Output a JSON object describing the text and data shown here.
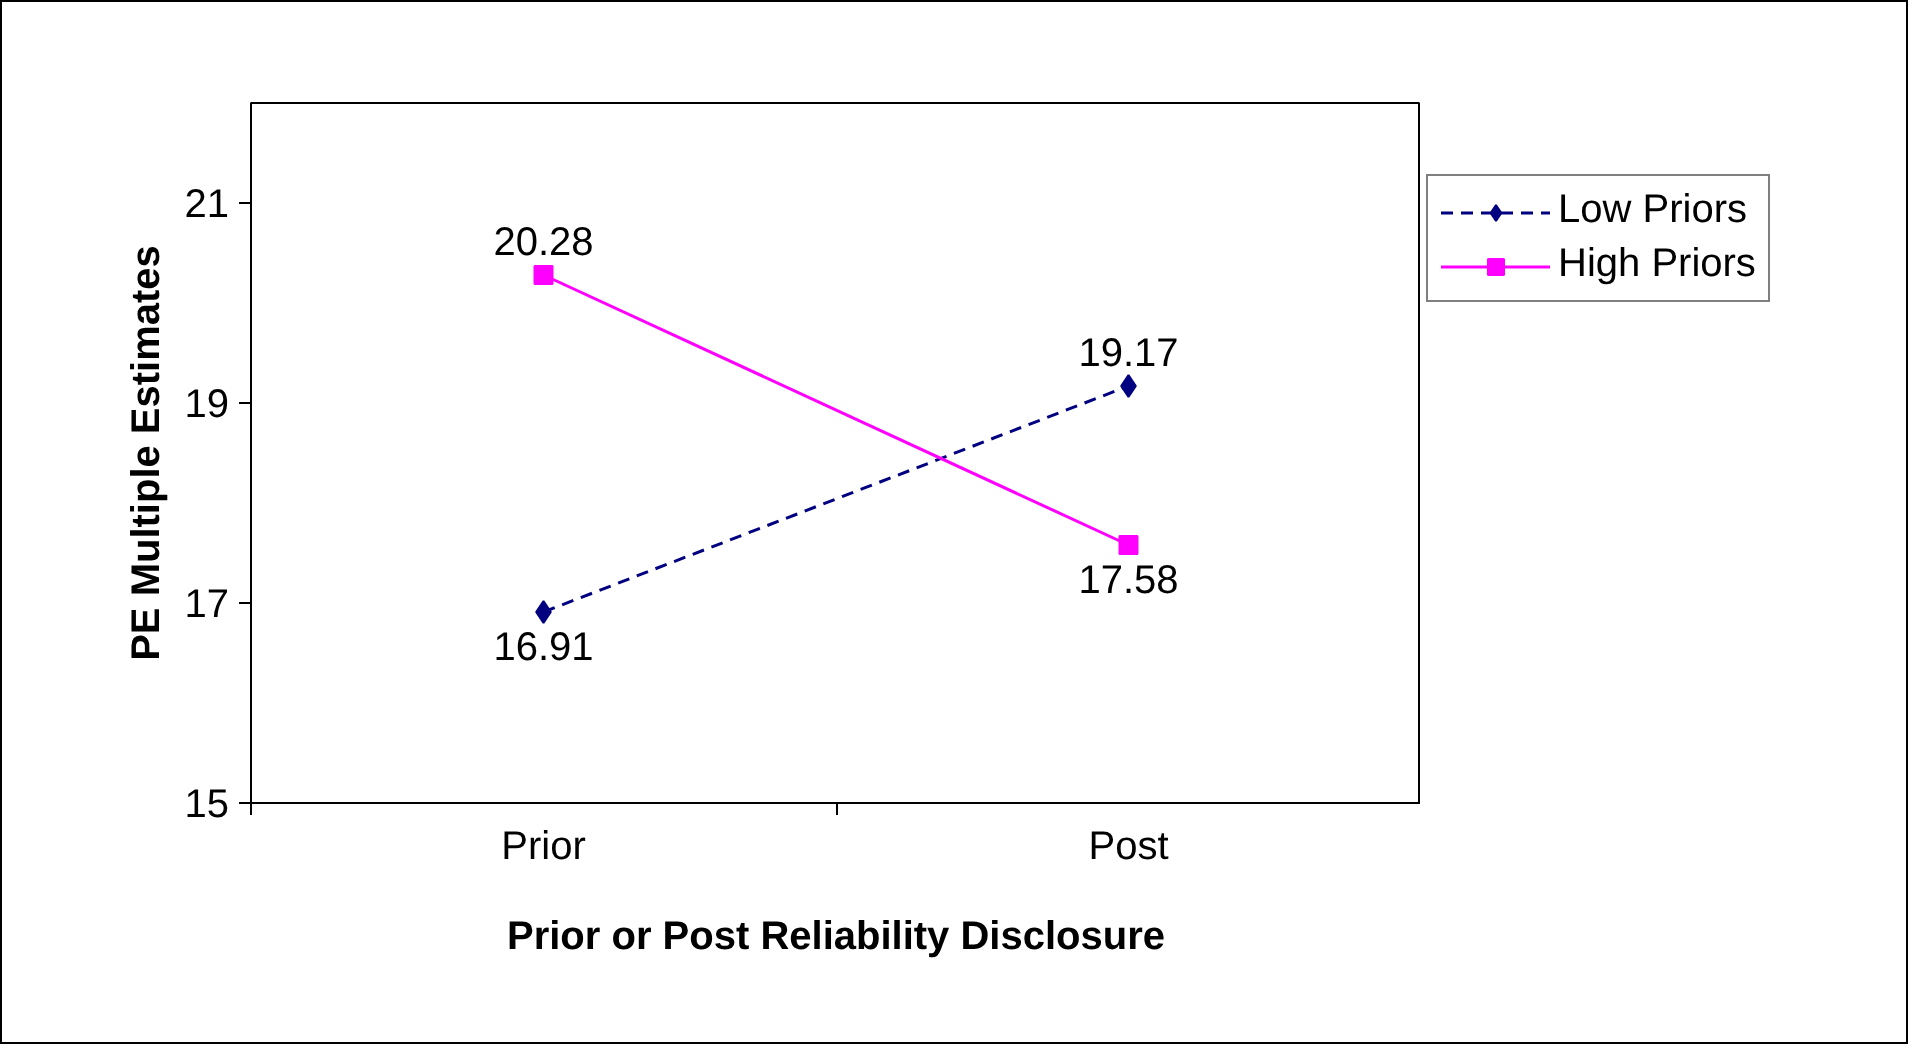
{
  "chart_data": {
    "type": "line",
    "xlabel": "Prior or Post Reliability Disclosure",
    "ylabel": "PE Multiple Estimates",
    "categories": [
      "Prior",
      "Post"
    ],
    "series": [
      {
        "name": "Low Priors",
        "color": "#000080",
        "values": [
          16.91,
          19.17
        ],
        "marker": "diamond",
        "line_style": "dashed"
      },
      {
        "name": "High Priors",
        "color": "#ff00ff",
        "values": [
          20.28,
          17.58
        ],
        "marker": "square",
        "line_style": "solid"
      }
    ],
    "ylim": [
      15,
      22
    ],
    "yticks": [
      15,
      17,
      19,
      21
    ],
    "grid": false,
    "legend": "right",
    "data_labels": true
  }
}
